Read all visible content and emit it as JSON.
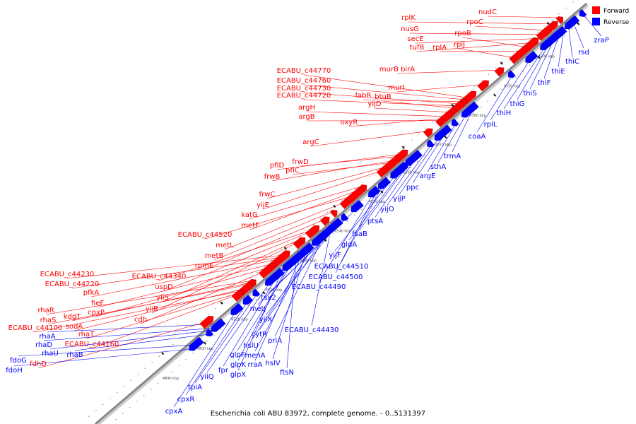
{
  "caption": "Escherichia coli ABU 83972, complete genome. - 0..5131397",
  "legend": {
    "forward_label": "Forward",
    "reverse_label": "Reverse",
    "forward_color": "#ff0000",
    "reverse_color": "#0000ff"
  },
  "colors": {
    "forward": "#ff0000",
    "reverse": "#0000ff",
    "backbone": "#888888"
  },
  "ticks": [
    "4490 kbp",
    "4500 kbp",
    "4510 kbp",
    "4520 kbp",
    "4530 kbp",
    "4540 kbp",
    "4550 kbp",
    "4560 kbp",
    "4570 kbp",
    "4580 kbp",
    "4590 kbp",
    "4600 kbp"
  ],
  "forward_labels": [
    "nudC",
    "rplK",
    "rpoC",
    "nusG",
    "secE",
    "rpoB",
    "tufB",
    "rplA",
    "rplJ",
    "murB birA",
    "murI",
    "ECABU_c44770",
    "ECABU_c44760",
    "fabR",
    "ECABU_c44730",
    "btuB",
    "ECABU_c44720",
    "yijD",
    "argH",
    "oxyR",
    "argB",
    "argC",
    "pflD",
    "frwD",
    "frwB",
    "pflC",
    "frwC",
    "yijE",
    "katG",
    "metF",
    "ECABU_c44520",
    "metL",
    "metB",
    "rpmE",
    "ECABU_c44340",
    "uspD",
    "yiiS",
    "yiiR",
    "ECABU_c44230",
    "ECABU_c44220",
    "pfkA",
    "fieF",
    "cpxP",
    "cdh",
    "rhaR",
    "kdgT",
    "rhaS",
    "sodA",
    "ECABU_c44100",
    "rhaT",
    "ECABU_c44160",
    "fdhD"
  ],
  "reverse_labels": [
    "zraP",
    "rsd",
    "thiC",
    "thiE",
    "thiF",
    "thiS",
    "thiG",
    "thiH",
    "rplL",
    "coaA",
    "trmA",
    "sthA",
    "argE",
    "ppc",
    "yijP",
    "yijO",
    "ptsA",
    "fsaB",
    "gldA",
    "yijF",
    "ECABU_c44510",
    "ECABU_c44500",
    "ECABU_c44490",
    "tsx2",
    "metJ",
    "yiiX",
    "ECABU_c44430",
    "cytR",
    "priA",
    "hslU",
    "menA",
    "hslV",
    "rraA",
    "ftsN",
    "glpF",
    "glpK",
    "glpX",
    "fpr",
    "yiiQ",
    "tpiA",
    "cpxR",
    "cpxA",
    "rhaA",
    "rhaD",
    "rhaU",
    "rhaB",
    "fdoG",
    "fdoH"
  ]
}
